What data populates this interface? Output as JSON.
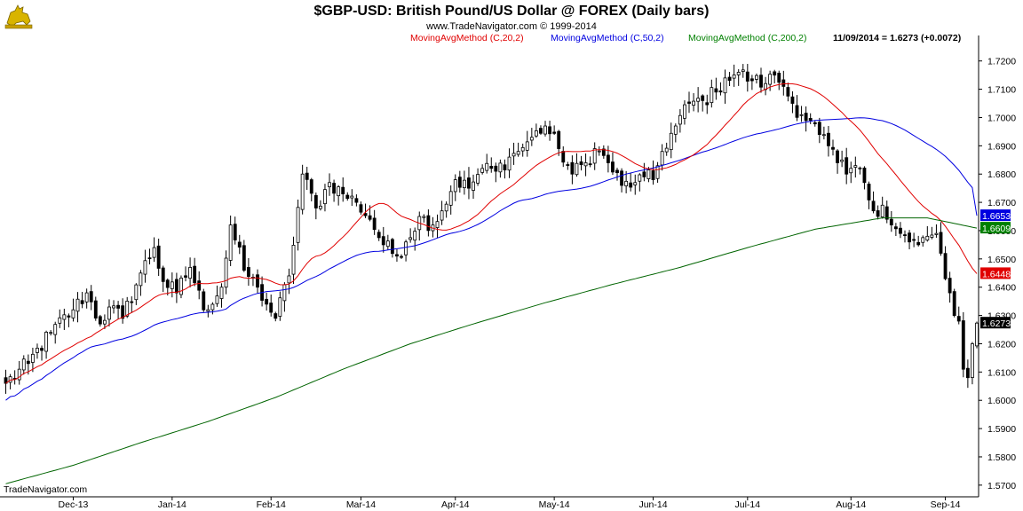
{
  "header": {
    "title": "$GBP-USD:  British Pound/US Dollar @ FOREX  (Daily bars)",
    "subtitle": "www.TradeNavigator.com © 1999-2014"
  },
  "legend": [
    {
      "label": "MovingAvgMethod (C,20,2)",
      "color": "#e00000"
    },
    {
      "label": "MovingAvgMethod (C,50,2)",
      "color": "#0000e0"
    },
    {
      "label": "MovingAvgMethod (C,200,2)",
      "color": "#008000"
    }
  ],
  "last_info": "11/09/2014 = 1.6273 (+0.0072)",
  "watermark": "TradeNavigator.com",
  "colors": {
    "ma20": "#e00000",
    "ma50": "#0000e0",
    "ma200": "#006400",
    "price": "#000000"
  },
  "chart_data": {
    "type": "candlestick",
    "ylim": [
      1.5665,
      1.7265
    ],
    "y_ticks": [
      "1.7200",
      "1.7100",
      "1.7000",
      "1.6900",
      "1.6800",
      "1.6700",
      "1.6600",
      "1.6500",
      "1.6400",
      "1.6300",
      "1.6200",
      "1.6100",
      "1.6000",
      "1.5900",
      "1.5800",
      "1.5700"
    ],
    "x_labels": [
      {
        "label": "Dec-13",
        "index": 15
      },
      {
        "label": "Jan-14",
        "index": 37
      },
      {
        "label": "Feb-14",
        "index": 59
      },
      {
        "label": "Mar-14",
        "index": 79
      },
      {
        "label": "Apr-14",
        "index": 100
      },
      {
        "label": "May-14",
        "index": 122
      },
      {
        "label": "Jun-14",
        "index": 144
      },
      {
        "label": "Jul-14",
        "index": 165
      },
      {
        "label": "Aug-14",
        "index": 188
      },
      {
        "label": "Sep-14",
        "index": 209
      }
    ],
    "close_anchors": [
      [
        0,
        1.606
      ],
      [
        5,
        1.613
      ],
      [
        10,
        1.624
      ],
      [
        15,
        1.632
      ],
      [
        18,
        1.638
      ],
      [
        21,
        1.627
      ],
      [
        23,
        1.633
      ],
      [
        26,
        1.629
      ],
      [
        30,
        1.645
      ],
      [
        33,
        1.654
      ],
      [
        35,
        1.642
      ],
      [
        38,
        1.638
      ],
      [
        41,
        1.647
      ],
      [
        44,
        1.632
      ],
      [
        48,
        1.64
      ],
      [
        50,
        1.662
      ],
      [
        53,
        1.646
      ],
      [
        56,
        1.64
      ],
      [
        58,
        1.634
      ],
      [
        60,
        1.629
      ],
      [
        63,
        1.644
      ],
      [
        66,
        1.68
      ],
      [
        69,
        1.668
      ],
      [
        72,
        1.677
      ],
      [
        75,
        1.673
      ],
      [
        78,
        1.67
      ],
      [
        81,
        1.664
      ],
      [
        84,
        1.655
      ],
      [
        87,
        1.651
      ],
      [
        89,
        1.656
      ],
      [
        92,
        1.665
      ],
      [
        95,
        1.662
      ],
      [
        97,
        1.667
      ],
      [
        100,
        1.678
      ],
      [
        103,
        1.675
      ],
      [
        106,
        1.682
      ],
      [
        109,
        1.681
      ],
      [
        112,
        1.686
      ],
      [
        114,
        1.688
      ],
      [
        117,
        1.693
      ],
      [
        120,
        1.697
      ],
      [
        123,
        1.689
      ],
      [
        126,
        1.68
      ],
      [
        129,
        1.684
      ],
      [
        131,
        1.689
      ],
      [
        134,
        1.684
      ],
      [
        137,
        1.676
      ],
      [
        140,
        1.677
      ],
      [
        142,
        1.679
      ],
      [
        144,
        1.678
      ],
      [
        146,
        1.688
      ],
      [
        149,
        1.697
      ],
      [
        152,
        1.705
      ],
      [
        155,
        1.706
      ],
      [
        158,
        1.709
      ],
      [
        160,
        1.714
      ],
      [
        163,
        1.716
      ],
      [
        166,
        1.713
      ],
      [
        169,
        1.712
      ],
      [
        171,
        1.715
      ],
      [
        173,
        1.711
      ],
      [
        175,
        1.705
      ],
      [
        177,
        1.701
      ],
      [
        179,
        1.699
      ],
      [
        181,
        1.694
      ],
      [
        183,
        1.69
      ],
      [
        185,
        1.684
      ],
      [
        187,
        1.68
      ],
      [
        189,
        1.683
      ],
      [
        191,
        1.677
      ],
      [
        193,
        1.667
      ],
      [
        195,
        1.669
      ],
      [
        197,
        1.662
      ],
      [
        199,
        1.659
      ],
      [
        201,
        1.656
      ],
      [
        203,
        1.655
      ],
      [
        205,
        1.658
      ],
      [
        207,
        1.659
      ],
      [
        208,
        1.652
      ],
      [
        209,
        1.643
      ],
      [
        210,
        1.638
      ],
      [
        211,
        1.63
      ],
      [
        212,
        1.628
      ],
      [
        213,
        1.611
      ],
      [
        214,
        1.608
      ],
      [
        215,
        1.62
      ],
      [
        216,
        1.627
      ]
    ],
    "candles_count": 217,
    "last_close": 1.6273,
    "series": [
      {
        "name": "MovingAvgMethod (C,20,2)",
        "period": 20,
        "last": 1.6448
      },
      {
        "name": "MovingAvgMethod (C,50,2)",
        "period": 50,
        "last": 1.6653
      },
      {
        "name": "MovingAvgMethod (C,200,2)",
        "last": 1.6609,
        "values": [
          [
            0,
            1.5705
          ],
          [
            15,
            1.577
          ],
          [
            30,
            1.585
          ],
          [
            45,
            1.5925
          ],
          [
            60,
            1.601
          ],
          [
            75,
            1.611
          ],
          [
            90,
            1.62
          ],
          [
            105,
            1.6275
          ],
          [
            120,
            1.6345
          ],
          [
            135,
            1.641
          ],
          [
            150,
            1.647
          ],
          [
            165,
            1.654
          ],
          [
            180,
            1.6605
          ],
          [
            195,
            1.6645
          ],
          [
            205,
            1.6645
          ],
          [
            216,
            1.6609
          ]
        ]
      }
    ],
    "price_tags": [
      {
        "key": "ma50",
        "label": "1.6653",
        "bg": "#0000e0",
        "fg": "#ffffff"
      },
      {
        "key": "ma200",
        "label": "1.6609",
        "bg": "#008000",
        "fg": "#ffffff"
      },
      {
        "key": "ma20",
        "label": "1.6448",
        "bg": "#e00000",
        "fg": "#ffffff"
      },
      {
        "key": "price",
        "label": "1.6273",
        "bg": "#000000",
        "fg": "#ffffff"
      }
    ]
  }
}
